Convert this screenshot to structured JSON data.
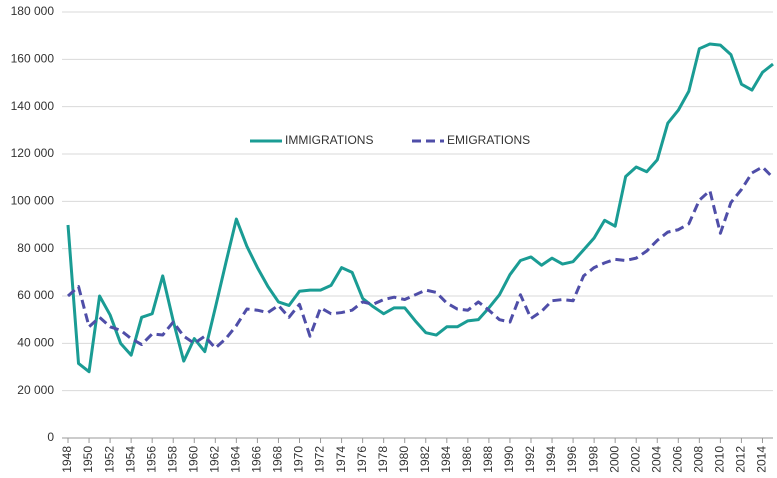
{
  "chart_data": {
    "type": "line",
    "x": [
      1948,
      1949,
      1950,
      1951,
      1952,
      1953,
      1954,
      1955,
      1956,
      1957,
      1958,
      1959,
      1960,
      1961,
      1962,
      1963,
      1964,
      1965,
      1966,
      1967,
      1968,
      1969,
      1970,
      1971,
      1972,
      1973,
      1974,
      1975,
      1976,
      1977,
      1978,
      1979,
      1980,
      1981,
      1982,
      1983,
      1984,
      1985,
      1986,
      1987,
      1988,
      1989,
      1990,
      1991,
      1992,
      1993,
      1994,
      1995,
      1996,
      1997,
      1998,
      1999,
      2000,
      2001,
      2002,
      2003,
      2004,
      2005,
      2006,
      2007,
      2008,
      2009,
      2010,
      2011,
      2012,
      2013,
      2014,
      2015
    ],
    "series": [
      {
        "name": "IMMIGRATIONS",
        "color": "#1a9c94",
        "linestyle": "solid",
        "values": [
          90000,
          31500,
          28000,
          60000,
          52000,
          40000,
          35000,
          51000,
          52500,
          68500,
          49500,
          32500,
          42000,
          36500,
          55000,
          74000,
          92500,
          81000,
          72000,
          64000,
          57500,
          56000,
          62000,
          62500,
          62500,
          64500,
          72000,
          70000,
          59000,
          55500,
          52500,
          55000,
          55000,
          49500,
          44500,
          43500,
          47000,
          47000,
          49500,
          50000,
          55000,
          60500,
          69000,
          75000,
          76500,
          73000,
          76000,
          73500,
          74500,
          79500,
          84500,
          92000,
          89500,
          110500,
          114500,
          112500,
          117500,
          133000,
          138500,
          146500,
          164500,
          166500,
          166000,
          162000,
          149500,
          147000,
          154500,
          158000
        ]
      },
      {
        "name": "EMIGRATIONS",
        "color": "#4f4ea8",
        "linestyle": "dashed",
        "values": [
          60000,
          64000,
          47000,
          51000,
          47000,
          45500,
          42000,
          39500,
          44000,
          43500,
          49000,
          43000,
          40000,
          43000,
          38000,
          42000,
          47500,
          54500,
          54000,
          53000,
          56000,
          51000,
          56500,
          43000,
          55000,
          52500,
          53000,
          54000,
          57500,
          56500,
          58500,
          59500,
          58500,
          60500,
          62500,
          61500,
          57000,
          54500,
          54000,
          57500,
          54000,
          50000,
          49000,
          60500,
          50500,
          53500,
          58000,
          58500,
          58000,
          68500,
          72000,
          74000,
          75500,
          75000,
          76000,
          79000,
          83500,
          87000,
          88000,
          90500,
          100500,
          104500,
          86500,
          99500,
          105000,
          112000,
          114500,
          110000
        ]
      }
    ],
    "xlim": [
      1948,
      2015
    ],
    "xticks": [
      1948,
      1950,
      1952,
      1954,
      1956,
      1958,
      1960,
      1962,
      1964,
      1966,
      1968,
      1970,
      1972,
      1974,
      1976,
      1978,
      1980,
      1982,
      1984,
      1986,
      1988,
      1990,
      1992,
      1994,
      1996,
      1998,
      2000,
      2002,
      2004,
      2006,
      2008,
      2010,
      2012,
      2014
    ],
    "ylim": [
      0,
      180000
    ],
    "yticks": [
      0,
      {
        "value": 20000,
        "label": "20 000"
      },
      {
        "value": 40000,
        "label": "40 000"
      },
      {
        "value": 60000,
        "label": "60 000"
      },
      {
        "value": 80000,
        "label": "80 000"
      },
      {
        "value": 100000,
        "label": "100 000"
      },
      {
        "value": 120000,
        "label": "120 000"
      },
      {
        "value": 140000,
        "label": "140 000"
      },
      {
        "value": 160000,
        "label": "160 000"
      },
      {
        "value": 180000,
        "label": "180 000"
      }
    ],
    "grid": true,
    "legend": "center"
  }
}
